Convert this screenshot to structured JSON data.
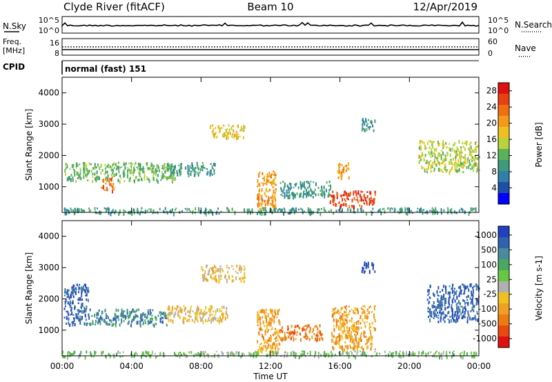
{
  "header": {
    "station": "Clyde River (fitACF)",
    "beam": "Beam 10",
    "date": "12/Apr/2019"
  },
  "nsky_panel": {
    "left_label": "N.Sky",
    "right_label": "N.Search",
    "left_ticks": [
      "10^5",
      "10^0"
    ],
    "right_ticks": [
      "10^5",
      "10^0"
    ]
  },
  "freq_panel": {
    "left_label_top": "Freq.",
    "left_label_unit": "[MHz]",
    "left_ticks": [
      "16",
      "8"
    ],
    "right_label": "Nave",
    "right_ticks": [
      "60",
      "0"
    ]
  },
  "cpid": {
    "label": "CPID",
    "value": "normal (fast) 151"
  },
  "colors": {
    "power_scale": [
      "#0000ff",
      "#1e4fa8",
      "#2f7fa8",
      "#3d9a7a",
      "#59b25a",
      "#b8d43a",
      "#f0c020",
      "#f59a18",
      "#f07010",
      "#e84010",
      "#e01010"
    ],
    "velocity_scale": [
      "#2040c0",
      "#3060b0",
      "#4a8a9a",
      "#48a860",
      "#66c840",
      "#b0b0b0",
      "#f0c020",
      "#f0a020",
      "#ee7a12",
      "#e84a10",
      "#e01010"
    ]
  },
  "chart_data": [
    {
      "type": "heatmap",
      "name": "power",
      "ylabel": "Slant Range [km]",
      "yticks": [
        1000,
        2000,
        3000,
        4000
      ],
      "ylim": [
        180,
        4500
      ],
      "xticks": [
        "00:00",
        "04:00",
        "08:00",
        "12:00",
        "16:00",
        "20:00",
        "00:00"
      ],
      "xlim": [
        0,
        24
      ],
      "colorbar": {
        "label": "Power [dB]",
        "ticks": [
          "4",
          "8",
          "12",
          "16",
          "20",
          "24",
          "28"
        ],
        "range": [
          0,
          30
        ]
      },
      "echo_regions": [
        {
          "t": [
            0.1,
            6.5
          ],
          "r": [
            1200,
            1800
          ],
          "v": 12
        },
        {
          "t": [
            2.2,
            3.0
          ],
          "r": [
            900,
            1300
          ],
          "v": 24
        },
        {
          "t": [
            6.0,
            8.8
          ],
          "r": [
            1400,
            1800
          ],
          "v": 10
        },
        {
          "t": [
            8.5,
            10.5
          ],
          "r": [
            2600,
            3000
          ],
          "v": 18
        },
        {
          "t": [
            11.2,
            12.3
          ],
          "r": [
            300,
            1600
          ],
          "v": 20
        },
        {
          "t": [
            12.5,
            15.5
          ],
          "r": [
            700,
            1200
          ],
          "v": 10
        },
        {
          "t": [
            15.4,
            18.0
          ],
          "r": [
            400,
            900
          ],
          "v": 27
        },
        {
          "t": [
            15.8,
            16.5
          ],
          "r": [
            1300,
            1800
          ],
          "v": 22
        },
        {
          "t": [
            17.2,
            18.0
          ],
          "r": [
            2800,
            3200
          ],
          "v": 8
        },
        {
          "t": [
            20.5,
            24.0
          ],
          "r": [
            1500,
            2500
          ],
          "v": 16
        },
        {
          "t": [
            0.0,
            24.0
          ],
          "r": [
            180,
            350
          ],
          "v": 8
        }
      ]
    },
    {
      "type": "heatmap",
      "name": "velocity",
      "ylabel": "Slant Range [km]",
      "yticks": [
        1000,
        2000,
        3000,
        4000
      ],
      "ylim": [
        180,
        4500
      ],
      "xticks": [
        "00:00",
        "04:00",
        "08:00",
        "12:00",
        "16:00",
        "20:00",
        "00:00"
      ],
      "xlim": [
        0,
        24
      ],
      "xlabel": "Time UT",
      "colorbar": {
        "label": "Velocity [m s-1]",
        "ticks": [
          "1000",
          "500",
          "100",
          "25",
          "-25",
          "-100",
          "-500",
          "-1000"
        ]
      },
      "echo_regions": [
        {
          "t": [
            0.1,
            1.5
          ],
          "r": [
            1200,
            2500
          ],
          "v": 700
        },
        {
          "t": [
            1.5,
            6.0
          ],
          "r": [
            1200,
            1700
          ],
          "v": 80
        },
        {
          "t": [
            6.0,
            9.5
          ],
          "r": [
            1300,
            1800
          ],
          "v": -120
        },
        {
          "t": [
            8.0,
            10.5
          ],
          "r": [
            2600,
            3100
          ],
          "v": -150
        },
        {
          "t": [
            11.2,
            12.5
          ],
          "r": [
            300,
            1700
          ],
          "v": -200
        },
        {
          "t": [
            12.5,
            15.0
          ],
          "r": [
            700,
            1200
          ],
          "v": -300
        },
        {
          "t": [
            15.5,
            18.0
          ],
          "r": [
            400,
            1800
          ],
          "v": -250
        },
        {
          "t": [
            17.2,
            18.0
          ],
          "r": [
            2900,
            3200
          ],
          "v": 800
        },
        {
          "t": [
            21.0,
            24.0
          ],
          "r": [
            1300,
            2500
          ],
          "v": 600
        },
        {
          "t": [
            0.0,
            24.0
          ],
          "r": [
            180,
            350
          ],
          "v": 0
        }
      ]
    }
  ]
}
